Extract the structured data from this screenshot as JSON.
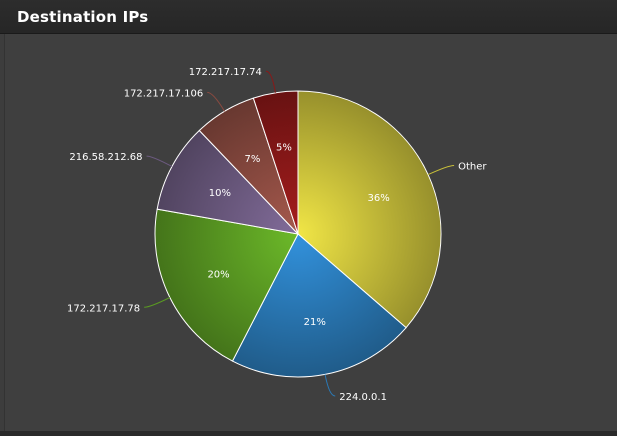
{
  "widget": {
    "title": "Destination IPs"
  },
  "chart_data": {
    "type": "pie",
    "title": "Destination IPs",
    "slices": [
      {
        "label": "Other",
        "percent": 36,
        "color": "#c9c03a"
      },
      {
        "label": "224.0.0.1",
        "percent": 21,
        "color": "#2a7ab8"
      },
      {
        "label": "172.217.17.78",
        "percent": 20,
        "color": "#5a9a22"
      },
      {
        "label": "216.58.212.68",
        "percent": 10,
        "color": "#6c5a80"
      },
      {
        "label": "172.217.17.106",
        "percent": 7,
        "color": "#8a4a40"
      },
      {
        "label": "172.217.17.74",
        "percent": 5,
        "color": "#8a1818"
      }
    ]
  }
}
